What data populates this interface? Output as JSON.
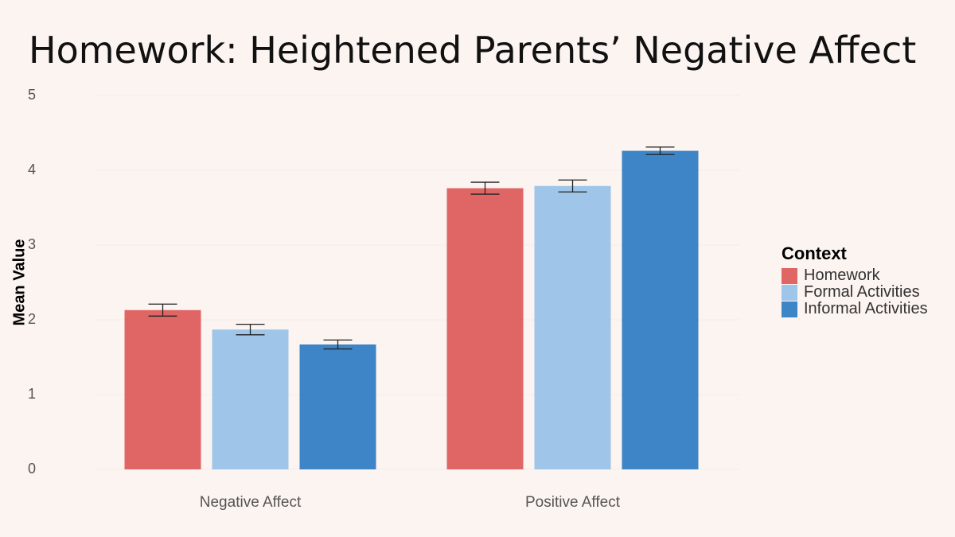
{
  "title": "Homework: Heightened Parents’ Negative Affect",
  "chart_data": {
    "type": "bar",
    "title": "",
    "xlabel": "",
    "ylabel": "Mean Value",
    "ylim": [
      0,
      5
    ],
    "yticks": [
      "0",
      "1",
      "2",
      "3",
      "4",
      "5"
    ],
    "categories": [
      "Negative Affect",
      "Positive Affect"
    ],
    "grid": true,
    "legend_position": "right",
    "legend_title": "Context",
    "series": [
      {
        "name": "Homework",
        "color": "#e06666",
        "values": [
          2.13,
          3.76
        ],
        "errors": [
          0.08,
          0.08
        ]
      },
      {
        "name": "Formal Activities",
        "color": "#9fc5e8",
        "values": [
          1.87,
          3.79
        ],
        "errors": [
          0.07,
          0.08
        ]
      },
      {
        "name": "Informal Activities",
        "color": "#3d85c6",
        "values": [
          1.67,
          4.26
        ],
        "errors": [
          0.06,
          0.05
        ]
      }
    ]
  }
}
